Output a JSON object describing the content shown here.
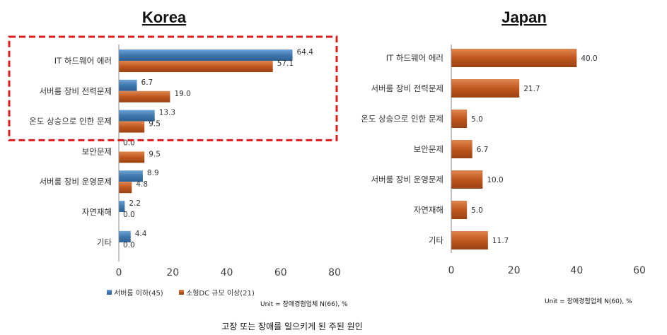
{
  "chart_data": [
    {
      "type": "bar",
      "orientation": "horizontal",
      "title": "Korea",
      "categories": [
        "IT 하드웨어 에러",
        "서버룸 장비 전력문제",
        "온도 상승으로 인한 문제",
        "보안문제",
        "서버룸 장비 운영문제",
        "자연재해",
        "기타"
      ],
      "series": [
        {
          "name": "서버룸 이하(45)",
          "values": [
            64.4,
            6.7,
            13.3,
            0.0,
            8.9,
            2.2,
            4.4
          ]
        },
        {
          "name": "소형DC 규모 이상(21)",
          "values": [
            57.1,
            19.0,
            9.5,
            9.5,
            4.8,
            0.0,
            0.0
          ]
        }
      ],
      "xlim": [
        0,
        80
      ],
      "xticks": [
        "0",
        "20",
        "40",
        "60",
        "80"
      ],
      "highlighted_categories": [
        "IT 하드웨어 에러",
        "서버룸 장비 전력문제",
        "온도 상승으로 인한 문제"
      ],
      "legend": "bottom-left",
      "unit_note": "Unit = 장애경험업체 N(66), %"
    },
    {
      "type": "bar",
      "orientation": "horizontal",
      "title": "Japan",
      "categories": [
        "IT 하드웨어 에러",
        "서버룸 장비 전력문제",
        "온도 상승으로 인한 문제",
        "보안문제",
        "서버룸 장비 운영문제",
        "자연재해",
        "기타"
      ],
      "series": [
        {
          "values": [
            40.0,
            21.7,
            5.0,
            6.7,
            10.0,
            5.0,
            11.7
          ]
        }
      ],
      "xlim": [
        0,
        60
      ],
      "xticks": [
        "0",
        "20",
        "40",
        "60"
      ],
      "unit_note": "Unit = 장애경험업체 N(60), %"
    }
  ],
  "caption": "고장 또는 장애를 일으키게 된 주된 원인",
  "colors": {
    "blue": "#3e78b0",
    "orange": "#c0571f",
    "highlight_border": "#e01b1b"
  }
}
